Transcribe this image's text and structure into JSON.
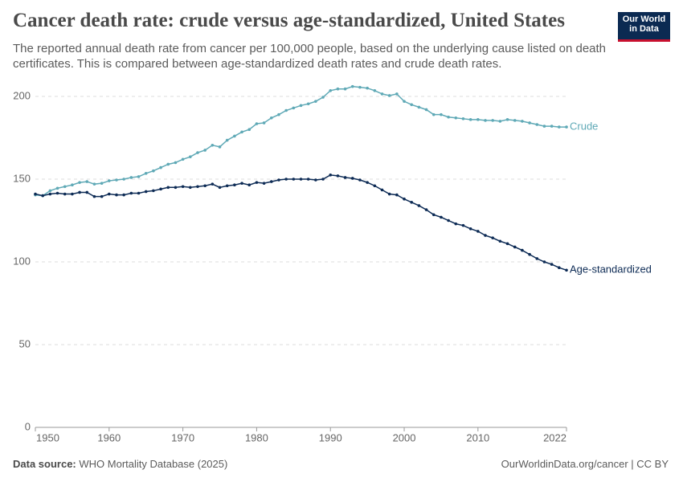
{
  "logo": [
    "Our World",
    "in Data"
  ],
  "chart_data": {
    "type": "line",
    "title": "Cancer death rate: crude versus age-standardized, United States",
    "subtitle": "The reported annual death rate from cancer per 100,000 people, based on the underlying cause listed on death certificates. This is compared between age-standardized death rates and crude death rates.",
    "source_label": "Data source:",
    "source": "WHO Mortality Database (2025)",
    "footer_right": "OurWorldinData.org/cancer | CC BY",
    "x": [
      1950,
      1951,
      1952,
      1953,
      1954,
      1955,
      1956,
      1957,
      1958,
      1959,
      1960,
      1961,
      1962,
      1963,
      1964,
      1965,
      1966,
      1967,
      1968,
      1969,
      1970,
      1971,
      1972,
      1973,
      1974,
      1975,
      1976,
      1977,
      1978,
      1979,
      1980,
      1981,
      1982,
      1983,
      1984,
      1985,
      1986,
      1987,
      1988,
      1989,
      1990,
      1991,
      1992,
      1993,
      1994,
      1995,
      1996,
      1997,
      1998,
      1999,
      2000,
      2001,
      2002,
      2003,
      2004,
      2005,
      2006,
      2007,
      2008,
      2009,
      2010,
      2011,
      2012,
      2013,
      2014,
      2015,
      2016,
      2017,
      2018,
      2019,
      2020,
      2021,
      2022
    ],
    "series": [
      {
        "name": "Crude",
        "color": "#5fa9b6",
        "values": [
          140.5,
          140,
          143,
          144.5,
          145.5,
          146.5,
          148,
          148.5,
          147,
          147.5,
          149,
          149.5,
          150,
          151,
          151.5,
          153.5,
          155,
          157,
          159,
          160,
          162,
          163.5,
          166,
          167.5,
          170.5,
          169.5,
          173.5,
          176,
          178.5,
          180,
          183.5,
          184,
          187,
          189,
          191.5,
          193,
          194.5,
          195.5,
          197,
          199.5,
          203.5,
          204.5,
          204.5,
          206,
          205.5,
          205,
          203.5,
          201.5,
          200.5,
          201.5,
          197,
          195,
          193.5,
          192,
          189,
          189,
          187.5,
          187,
          186.5,
          186,
          186,
          185.5,
          185.5,
          185,
          186,
          185.5,
          185,
          184,
          183,
          182,
          182,
          181.5,
          181.5
        ]
      },
      {
        "name": "Age-standardized",
        "color": "#0d2b55",
        "values": [
          141,
          140,
          141,
          141.5,
          141,
          141,
          142,
          142,
          139.5,
          139.5,
          141,
          140.5,
          140.5,
          141.5,
          141.5,
          142.5,
          143,
          144,
          145,
          145,
          145.5,
          145,
          145.5,
          146,
          147,
          145,
          146,
          146.5,
          147.5,
          146.5,
          148,
          147.5,
          148.5,
          149.5,
          150,
          150,
          150,
          150,
          149.5,
          150,
          152.5,
          152,
          151,
          150.5,
          149.5,
          148,
          146,
          143.5,
          141,
          140.5,
          138,
          136,
          134,
          131.5,
          128.5,
          127,
          125,
          123,
          122,
          120,
          118.5,
          116,
          114.5,
          112.5,
          111,
          109,
          107,
          104.5,
          102,
          100,
          98.5,
          96.5,
          95
        ]
      }
    ],
    "xlim": [
      1950,
      2022
    ],
    "xticks": [
      1950,
      1960,
      1970,
      1980,
      1990,
      2000,
      2010,
      2022
    ],
    "ylim": [
      0,
      200
    ],
    "yticks": [
      0,
      50,
      100,
      150,
      200
    ],
    "grid": true
  }
}
